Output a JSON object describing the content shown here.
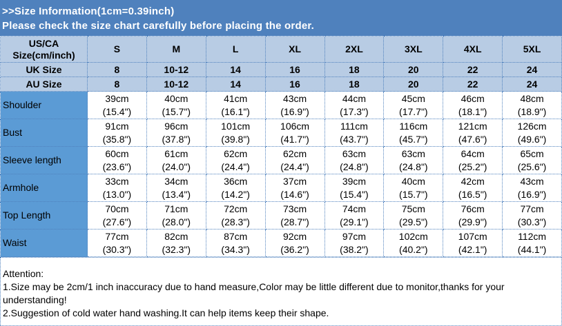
{
  "banner": {
    "line1": ">>Size Information(1cm=0.39inch)",
    "line2": "Please check the size chart carefully before placing the order."
  },
  "header": {
    "us_label": "US/CA Size(cm/inch)",
    "sizes": [
      "S",
      "M",
      "L",
      "XL",
      "2XL",
      "3XL",
      "4XL",
      "5XL"
    ],
    "uk_label": "UK Size",
    "uk": [
      "8",
      "10-12",
      "14",
      "16",
      "18",
      "20",
      "22",
      "24"
    ],
    "au_label": "AU Size",
    "au": [
      "8",
      "10-12",
      "14",
      "16",
      "18",
      "20",
      "22",
      "24"
    ]
  },
  "rows": [
    {
      "label": "Shoulder",
      "cm": [
        "39cm",
        "40cm",
        "41cm",
        "43cm",
        "44cm",
        "45cm",
        "46cm",
        "48cm"
      ],
      "in": [
        "(15.4\")",
        "(15.7\")",
        "(16.1\")",
        "(16.9\")",
        "(17.3\")",
        "(17.7\")",
        "(18.1\")",
        "(18.9\")"
      ]
    },
    {
      "label": "Bust",
      "cm": [
        "91cm",
        "96cm",
        "101cm",
        "106cm",
        "111cm",
        "116cm",
        "121cm",
        "126cm"
      ],
      "in": [
        "(35.8\")",
        "(37.8\")",
        "(39.8\")",
        "(41.7\")",
        "(43.7\")",
        "(45.7\")",
        "(47.6\")",
        "(49.6\")"
      ]
    },
    {
      "label": "Sleeve length",
      "cm": [
        "60cm",
        "61cm",
        "62cm",
        "62cm",
        "63cm",
        "63cm",
        "64cm",
        "65cm"
      ],
      "in": [
        "(23.6\")",
        "(24.0\")",
        "(24.4\")",
        "(24.4\")",
        "(24.8\")",
        "(24.8\")",
        "(25.2\")",
        "(25.6\")"
      ]
    },
    {
      "label": "Armhole",
      "cm": [
        "33cm",
        "34cm",
        "36cm",
        "37cm",
        "39cm",
        "40cm",
        "42cm",
        "43cm"
      ],
      "in": [
        "(13.0\")",
        "(13.4\")",
        "(14.2\")",
        "(14.6\")",
        "(15.4\")",
        "(15.7\")",
        "(16.5\")",
        "(16.9\")"
      ]
    },
    {
      "label": "Top Length",
      "cm": [
        "70cm",
        "71cm",
        "72cm",
        "73cm",
        "74cm",
        "75cm",
        "76cm",
        "77cm"
      ],
      "in": [
        "(27.6\")",
        "(28.0\")",
        "(28.3\")",
        "(28.7\")",
        "(29.1\")",
        "(29.5\")",
        "(29.9\")",
        "(30.3\")"
      ]
    },
    {
      "label": "Waist",
      "cm": [
        "77cm",
        "82cm",
        "87cm",
        "92cm",
        "97cm",
        "102cm",
        "107cm",
        "112cm"
      ],
      "in": [
        "(30.3\")",
        "(32.3\")",
        "(34.3\")",
        "(36.2\")",
        "(38.2\")",
        "(40.2\")",
        "(42.1\")",
        "(44.1\")"
      ]
    }
  ],
  "attention": {
    "title": "Attention:",
    "line1": "1.Size may be 2cm/1 inch inaccuracy due to hand measure,Color may be little different due to monitor,thanks for your understanding!",
    "line2": "2.Suggestion of cold water hand washing.It can help items keep their shape."
  }
}
